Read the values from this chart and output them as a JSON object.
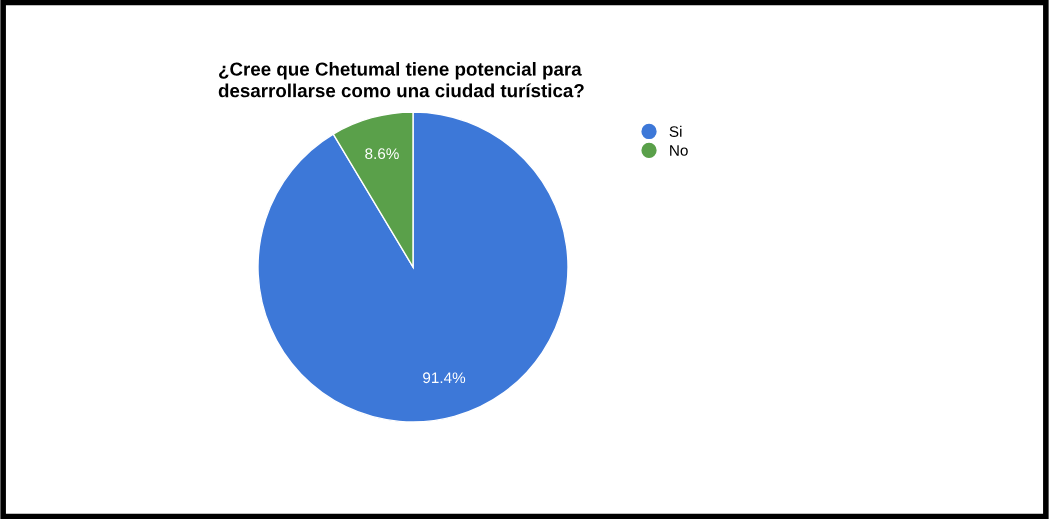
{
  "chart_data": {
    "type": "pie",
    "title": "¿Cree que Chetumal tiene potencial para\ndesarrollarse como una ciudad turística?",
    "categories": [
      "Si",
      "No"
    ],
    "values": [
      91.4,
      8.6
    ],
    "colors": [
      "#3d78d8",
      "#5aa04a"
    ],
    "value_labels": [
      "91.4%",
      "8.6%"
    ],
    "legend": "top right"
  }
}
